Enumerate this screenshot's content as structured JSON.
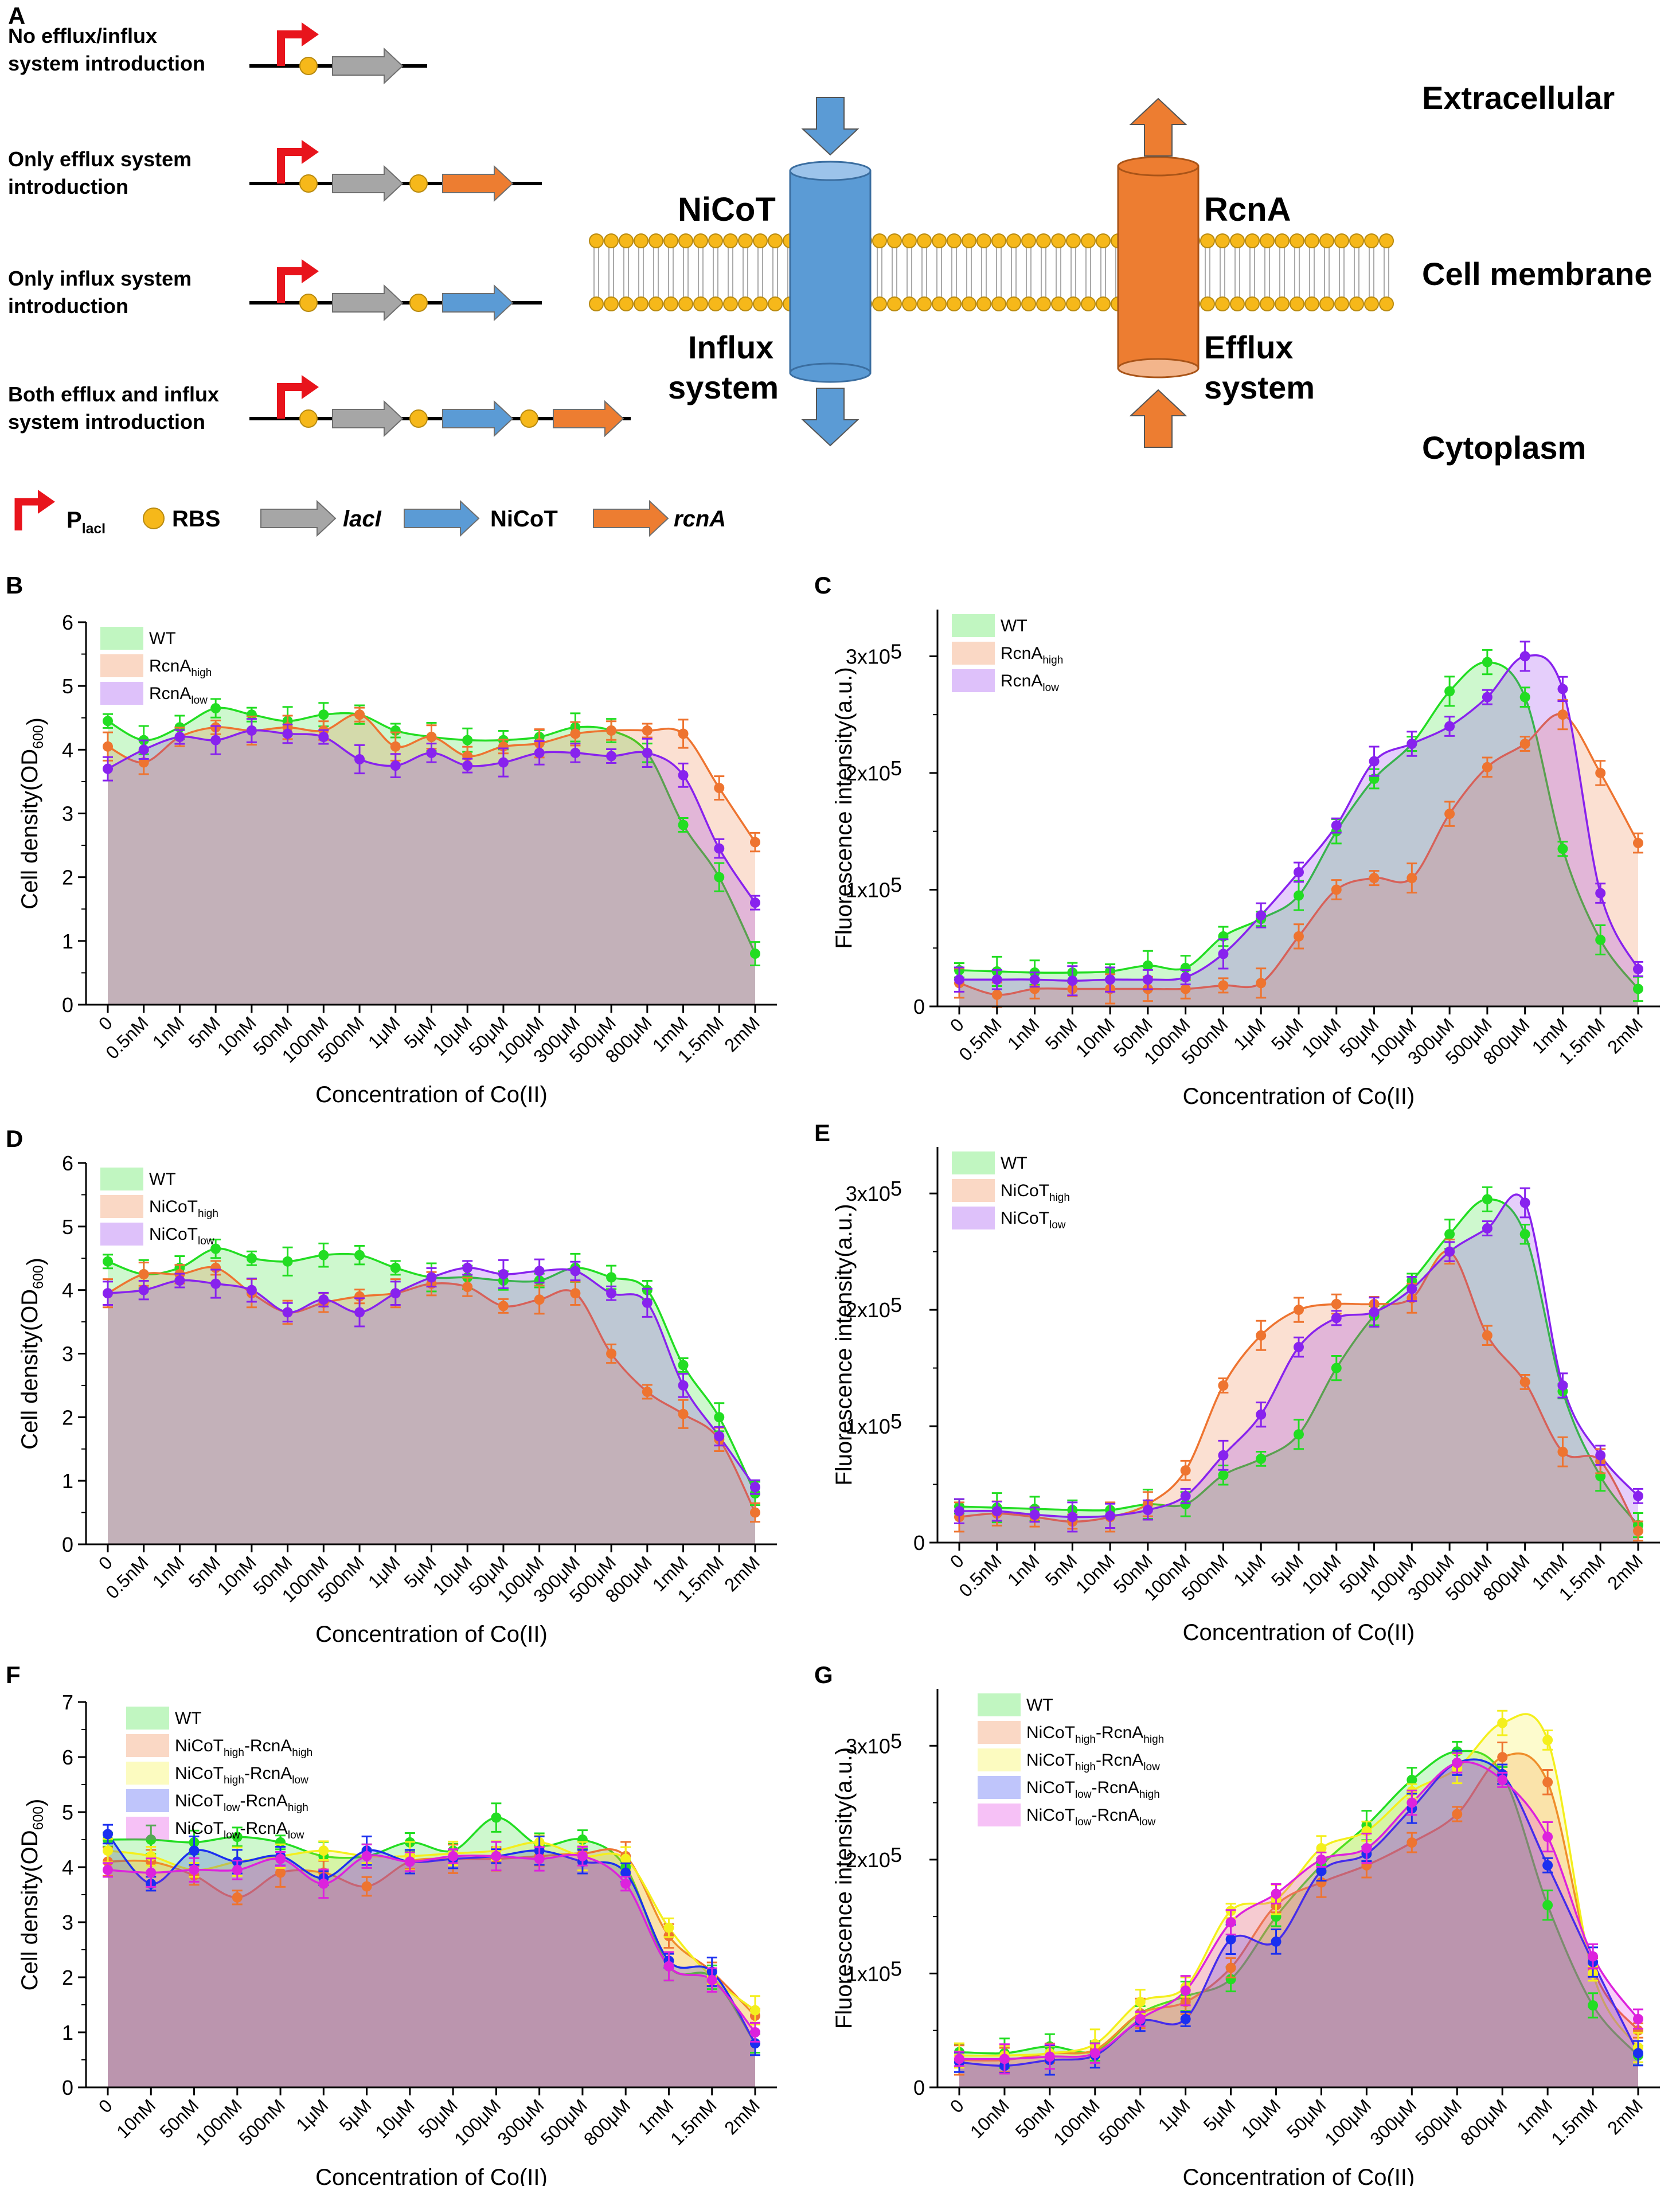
{
  "panel_a": {
    "letter": "A",
    "construct_labels": [
      "No efflux/influx|system introduction",
      "Only efflux system|introduction",
      "Only influx system|introduction",
      "Both efflux and influx|system introduction"
    ],
    "legend": {
      "plac": "P",
      "plac_sub": "lacI",
      "rbs": "RBS",
      "laci": "lacI",
      "nicot": "NiCoT",
      "rcna": "rcnA"
    },
    "nicot_label": "NiCoT",
    "influx_label": "Influx|system",
    "rcna_label": "RcnA",
    "efflux_label": "Efflux|system",
    "extracellular": "Extracellular",
    "membrane": "Cell membrane",
    "cytoplasm": "Cytoplasm",
    "colors": {
      "red": "#e8141c",
      "rbs": "#f6b81a",
      "gray": "#a6a6a6",
      "blue": "#5b9bd5",
      "orange": "#ed7d31",
      "blue_text": "#4f95d9",
      "orange_text": "#e8772e"
    }
  },
  "chart_data": [
    {
      "id": "B",
      "type": "area",
      "letter": "B",
      "xlabel": "Concentration of Co(II)",
      "ylabel": "Cell density(OD",
      "ylabel_sub": "600",
      "ylabel_tail": ")",
      "categories": [
        "0",
        "0.5nM",
        "1nM",
        "5nM",
        "10nM",
        "50nM",
        "100nM",
        "500nM",
        "1μM",
        "5μM",
        "10μM",
        "50μM",
        "100μM",
        "300μM",
        "500μM",
        "800μM",
        "1mM",
        "1.5mM",
        "2mM"
      ],
      "ylim": [
        0,
        6
      ],
      "yticks": [
        "0",
        "1",
        "2",
        "3",
        "4",
        "5",
        "6"
      ],
      "series": [
        {
          "name": "WT",
          "sub": "",
          "color": "#22dd22",
          "values": [
            4.45,
            4.15,
            4.35,
            4.65,
            4.55,
            4.45,
            4.55,
            4.55,
            4.3,
            4.2,
            4.15,
            4.15,
            4.2,
            4.35,
            4.3,
            3.95,
            2.82,
            2.0,
            0.8
          ]
        },
        {
          "name": "RcnA",
          "sub": "high",
          "color": "#ee7430",
          "values": [
            4.05,
            3.8,
            4.2,
            4.35,
            4.3,
            4.35,
            4.3,
            4.55,
            4.05,
            4.2,
            3.9,
            4.05,
            4.1,
            4.25,
            4.3,
            4.3,
            4.25,
            3.4,
            2.55
          ]
        },
        {
          "name": "RcnA",
          "sub": "low",
          "color": "#8822ee",
          "values": [
            3.7,
            4.0,
            4.2,
            4.15,
            4.3,
            4.25,
            4.2,
            3.85,
            3.75,
            3.95,
            3.75,
            3.8,
            3.95,
            3.95,
            3.9,
            3.95,
            3.6,
            2.45,
            1.6
          ]
        }
      ]
    },
    {
      "id": "C",
      "type": "area",
      "letter": "C",
      "xlabel": "Concentration of Co(II)",
      "ylabel": "Fluorescence intensity(a.u.)",
      "categories": [
        "0",
        "0.5nM",
        "1nM",
        "5nM",
        "10nM",
        "50nM",
        "100nM",
        "500nM",
        "1μM",
        "5μM",
        "10μM",
        "50μM",
        "100μM",
        "300μM",
        "500μM",
        "800μM",
        "1mM",
        "1.5mM",
        "2mM"
      ],
      "ylim": [
        0,
        340000
      ],
      "yticks": [
        "0",
        "1x10",
        "2x10",
        "3x10"
      ],
      "ytick_exp": "5",
      "series": [
        {
          "name": "WT",
          "sub": "",
          "color": "#22dd22",
          "values": [
            31000,
            30000,
            29000,
            29000,
            30000,
            35000,
            33000,
            60000,
            75000,
            95000,
            150000,
            195000,
            225000,
            270000,
            295000,
            265000,
            135000,
            57000,
            15000
          ]
        },
        {
          "name": "RcnA",
          "sub": "high",
          "color": "#ee7430",
          "values": [
            20000,
            10000,
            15000,
            15000,
            15000,
            15000,
            15000,
            18000,
            20000,
            60000,
            100000,
            110000,
            110000,
            165000,
            205000,
            225000,
            250000,
            200000,
            140000
          ]
        },
        {
          "name": "RcnA",
          "sub": "low",
          "color": "#8822ee",
          "values": [
            23000,
            23000,
            23000,
            22000,
            23000,
            23000,
            25000,
            45000,
            78000,
            115000,
            155000,
            210000,
            225000,
            240000,
            265000,
            300000,
            272000,
            97000,
            32000
          ]
        }
      ]
    },
    {
      "id": "D",
      "type": "area",
      "letter": "D",
      "xlabel": "Concentration of Co(II)",
      "ylabel": "Cell density(OD",
      "ylabel_sub": "600",
      "ylabel_tail": ")",
      "categories": [
        "0",
        "0.5nM",
        "1nM",
        "5nM",
        "10nM",
        "50nM",
        "100nM",
        "500nM",
        "1μM",
        "5μM",
        "10μM",
        "50μM",
        "100μM",
        "300μM",
        "500μM",
        "800μM",
        "1mM",
        "1.5mM",
        "2mM"
      ],
      "ylim": [
        0,
        6
      ],
      "yticks": [
        "0",
        "1",
        "2",
        "3",
        "4",
        "5",
        "6"
      ],
      "series": [
        {
          "name": "WT",
          "sub": "",
          "color": "#22dd22",
          "values": [
            4.45,
            4.25,
            4.35,
            4.65,
            4.5,
            4.45,
            4.55,
            4.55,
            4.35,
            4.2,
            4.2,
            4.15,
            4.15,
            4.35,
            4.2,
            4.0,
            2.82,
            2.0,
            0.8
          ]
        },
        {
          "name": "NiCoT",
          "sub": "high",
          "color": "#ee7430",
          "values": [
            3.95,
            4.25,
            4.25,
            4.35,
            3.95,
            3.65,
            3.8,
            3.9,
            3.95,
            4.1,
            4.05,
            3.75,
            3.85,
            3.95,
            3.0,
            2.4,
            2.05,
            1.65,
            0.5
          ]
        },
        {
          "name": "NiCoT",
          "sub": "low",
          "color": "#8822ee",
          "values": [
            3.95,
            4.0,
            4.15,
            4.1,
            4.0,
            3.65,
            3.85,
            3.65,
            3.95,
            4.2,
            4.35,
            4.25,
            4.3,
            4.3,
            3.95,
            3.8,
            2.5,
            1.7,
            0.9
          ]
        }
      ]
    },
    {
      "id": "E",
      "type": "area",
      "letter": "E",
      "xlabel": "Concentration of Co(II)",
      "ylabel": "Fluorescence intensity(a.u.)",
      "categories": [
        "0",
        "0.5nM",
        "1nM",
        "5nM",
        "10nM",
        "50nM",
        "100nM",
        "500nM",
        "1μM",
        "5μM",
        "10μM",
        "50μM",
        "100μM",
        "300μM",
        "500μM",
        "800μM",
        "1mM",
        "1.5mM",
        "2mM"
      ],
      "ylim": [
        0,
        340000
      ],
      "yticks": [
        "0",
        "1x10",
        "2x10",
        "3x10"
      ],
      "ytick_exp": "5",
      "series": [
        {
          "name": "WT",
          "sub": "",
          "color": "#22dd22",
          "values": [
            31000,
            30000,
            29000,
            28000,
            28000,
            33000,
            33000,
            58000,
            72000,
            93000,
            150000,
            195000,
            225000,
            265000,
            295000,
            265000,
            130000,
            57000,
            15000
          ]
        },
        {
          "name": "NiCoT",
          "sub": "high",
          "color": "#ee7430",
          "values": [
            22000,
            25000,
            22000,
            18000,
            22000,
            33000,
            62000,
            135000,
            178000,
            200000,
            205000,
            205000,
            210000,
            250000,
            178000,
            138000,
            78000,
            70000,
            10000
          ]
        },
        {
          "name": "NiCoT",
          "sub": "low",
          "color": "#8822ee",
          "values": [
            27000,
            27000,
            24000,
            22000,
            23000,
            28000,
            40000,
            75000,
            110000,
            168000,
            193000,
            198000,
            218000,
            250000,
            270000,
            292000,
            135000,
            75000,
            40000
          ]
        }
      ]
    },
    {
      "id": "F",
      "type": "area",
      "letter": "F",
      "xlabel": "Concentration of Co(II)",
      "ylabel": "Cell density(OD",
      "ylabel_sub": "600",
      "ylabel_tail": ")",
      "categories": [
        "0",
        "10nM",
        "50nM",
        "100nM",
        "500nM",
        "1μM",
        "5μM",
        "10μM",
        "50μM",
        "100μM",
        "300μM",
        "500μM",
        "800μM",
        "1mM",
        "1.5mM",
        "2mM"
      ],
      "ylim": [
        0,
        7
      ],
      "yticks": [
        "0",
        "1",
        "2",
        "3",
        "4",
        "5",
        "6",
        "7"
      ],
      "series": [
        {
          "name": "WT",
          "sub": "",
          "color": "#22dd22",
          "values": [
            4.5,
            4.5,
            4.45,
            4.55,
            4.45,
            4.2,
            4.2,
            4.45,
            4.3,
            4.9,
            4.4,
            4.5,
            4.0,
            2.2,
            2.0,
            0.8
          ]
        },
        {
          "name": "NiCoT",
          "sub": "high",
          "name2": "-RcnA",
          "sub2": "high",
          "color": "#ee7430",
          "values": [
            4.1,
            4.1,
            3.85,
            3.45,
            3.9,
            3.9,
            3.65,
            4.1,
            4.15,
            4.15,
            4.2,
            4.25,
            4.2,
            2.75,
            2.1,
            1.3
          ]
        },
        {
          "name": "NiCoT",
          "sub": "high",
          "name2": "-RcnA",
          "sub2": "low",
          "color": "#f4ef1c",
          "values": [
            4.3,
            4.2,
            3.95,
            4.1,
            4.2,
            4.3,
            4.2,
            4.2,
            4.25,
            4.3,
            4.45,
            4.2,
            4.15,
            2.9,
            2.0,
            1.4
          ]
        },
        {
          "name": "NiCoT",
          "sub": "low",
          "name2": "-RcnA",
          "sub2": "high",
          "color": "#1a2ff0",
          "values": [
            4.6,
            3.7,
            4.3,
            4.1,
            4.2,
            3.8,
            4.3,
            4.1,
            4.15,
            4.2,
            4.3,
            4.1,
            3.9,
            2.3,
            2.1,
            0.8
          ]
        },
        {
          "name": "NiCoT",
          "sub": "low",
          "name2": "-RcnA",
          "sub2": "low",
          "color": "#dd22dd",
          "values": [
            3.95,
            3.9,
            3.95,
            3.95,
            4.15,
            3.7,
            4.2,
            4.1,
            4.2,
            4.2,
            4.15,
            4.2,
            3.7,
            2.2,
            1.95,
            1.0
          ]
        }
      ]
    },
    {
      "id": "G",
      "type": "area",
      "letter": "G",
      "xlabel": "Concentration of Co(II)",
      "ylabel": "Fluorescence intensity(a.u.)",
      "categories": [
        "0",
        "10nM",
        "50nM",
        "100nM",
        "500nM",
        "1μM",
        "5μM",
        "10μM",
        "50μM",
        "100μM",
        "300μM",
        "500μM",
        "800μM",
        "1mM",
        "1.5mM",
        "2mM"
      ],
      "ylim": [
        0,
        350000
      ],
      "yticks": [
        "0",
        "1x10",
        "2x10",
        "3x10"
      ],
      "ytick_exp": "5",
      "series": [
        {
          "name": "WT",
          "sub": "",
          "color": "#22dd22",
          "values": [
            31000,
            30000,
            36000,
            32000,
            65000,
            80000,
            95000,
            150000,
            195000,
            230000,
            270000,
            295000,
            275000,
            160000,
            72000,
            28000
          ]
        },
        {
          "name": "NiCoT",
          "sub": "high",
          "name2": "-RcnA",
          "sub2": "high",
          "color": "#ee7430",
          "values": [
            24000,
            24000,
            30000,
            33000,
            65000,
            75000,
            105000,
            160000,
            180000,
            195000,
            215000,
            240000,
            290000,
            268000,
            105000,
            50000
          ]
        },
        {
          "name": "NiCoT",
          "sub": "high",
          "name2": "-RcnA",
          "sub2": "low",
          "color": "#f4ef1c",
          "values": [
            28000,
            28000,
            30000,
            38000,
            75000,
            88000,
            155000,
            165000,
            210000,
            225000,
            260000,
            280000,
            320000,
            305000,
            100000,
            35000
          ]
        },
        {
          "name": "NiCoT",
          "sub": "low",
          "name2": "-RcnA",
          "sub2": "high",
          "color": "#1a2ff0",
          "values": [
            22000,
            19000,
            24000,
            28000,
            58000,
            60000,
            130000,
            128000,
            190000,
            205000,
            245000,
            285000,
            275000,
            195000,
            110000,
            30000
          ]
        },
        {
          "name": "NiCoT",
          "sub": "low",
          "name2": "-RcnA",
          "sub2": "low",
          "color": "#dd22dd",
          "values": [
            25000,
            25000,
            27000,
            30000,
            60000,
            85000,
            145000,
            170000,
            200000,
            210000,
            250000,
            285000,
            270000,
            220000,
            115000,
            60000
          ]
        }
      ]
    }
  ]
}
